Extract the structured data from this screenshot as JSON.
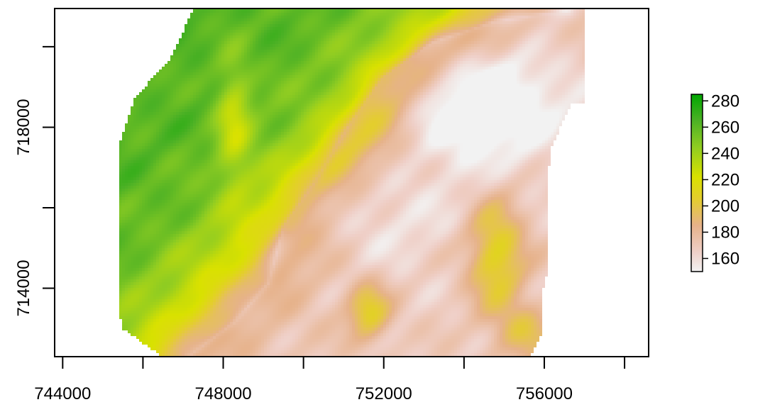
{
  "chart_data": {
    "type": "heatmap",
    "title": "",
    "xlabel": "",
    "ylabel": "",
    "x_axis": {
      "range": [
        743800,
        758600
      ],
      "ticks": [
        744000,
        746000,
        748000,
        750000,
        752000,
        754000,
        756000,
        758000
      ],
      "tick_labels": [
        "744000",
        "",
        "748000",
        "",
        "752000",
        "",
        "756000",
        ""
      ]
    },
    "y_axis": {
      "range": [
        712300,
        720950
      ],
      "ticks": [
        714000,
        716000,
        718000,
        720000
      ],
      "tick_labels": [
        "714000",
        "",
        "718000",
        ""
      ]
    },
    "value_range": [
      150,
      285
    ],
    "color_scale": {
      "stops": [
        {
          "value": 150,
          "color": "#f2f2f2"
        },
        {
          "value": 165,
          "color": "#efcfc7"
        },
        {
          "value": 185,
          "color": "#e6b28a"
        },
        {
          "value": 205,
          "color": "#e4cd2f"
        },
        {
          "value": 222,
          "color": "#d9e100"
        },
        {
          "value": 245,
          "color": "#8fcc22"
        },
        {
          "value": 265,
          "color": "#4cb125"
        },
        {
          "value": 285,
          "color": "#00a600"
        }
      ]
    },
    "legend": {
      "placement": "right",
      "ticks": [
        160,
        180,
        200,
        220,
        240,
        260,
        280
      ],
      "tick_labels": [
        "160",
        "180",
        "200",
        "220",
        "240",
        "260",
        "280"
      ]
    },
    "grid": false
  }
}
